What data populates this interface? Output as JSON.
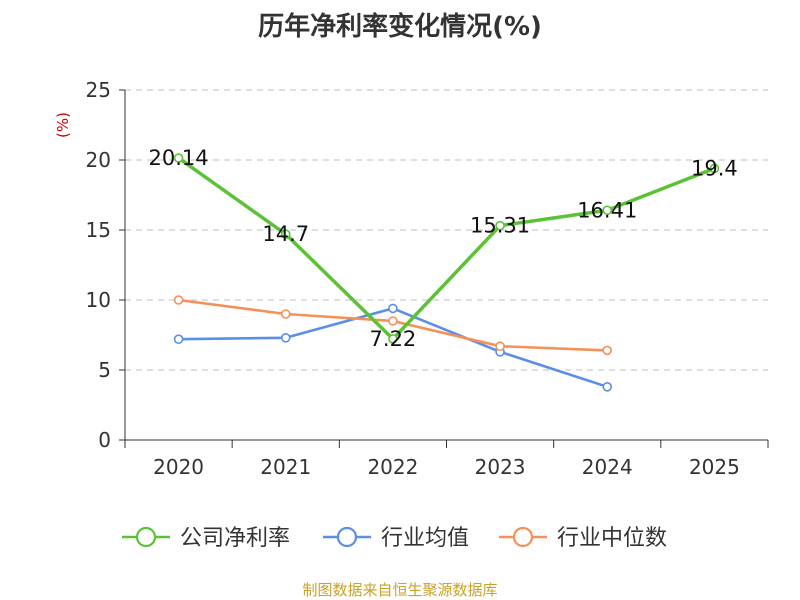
{
  "chart_data": {
    "type": "line",
    "title": "历年净利率变化情况(%)",
    "ylabel": "(%)",
    "ylim": [
      0,
      25
    ],
    "yticks": [
      0,
      5,
      10,
      15,
      20,
      25
    ],
    "categories": [
      "2020",
      "2021",
      "2022",
      "2023",
      "2024",
      "2025"
    ],
    "grid": true,
    "legend_position": "bottom",
    "series": [
      {
        "name": "公司净利率",
        "color": "#5bc236",
        "values": [
          20.14,
          14.7,
          7.22,
          15.31,
          16.41,
          19.4
        ],
        "labels": [
          "20.14",
          "14.7",
          "7.22",
          "15.31",
          "16.41",
          "19.4"
        ]
      },
      {
        "name": "行业均值",
        "color": "#5b8ee6",
        "values": [
          7.2,
          7.3,
          9.4,
          6.3,
          3.8,
          null
        ]
      },
      {
        "name": "行业中位数",
        "color": "#f59157",
        "values": [
          10.0,
          9.0,
          8.5,
          6.7,
          6.4,
          null
        ]
      }
    ]
  },
  "source": "制图数据来自恒生聚源数据库"
}
